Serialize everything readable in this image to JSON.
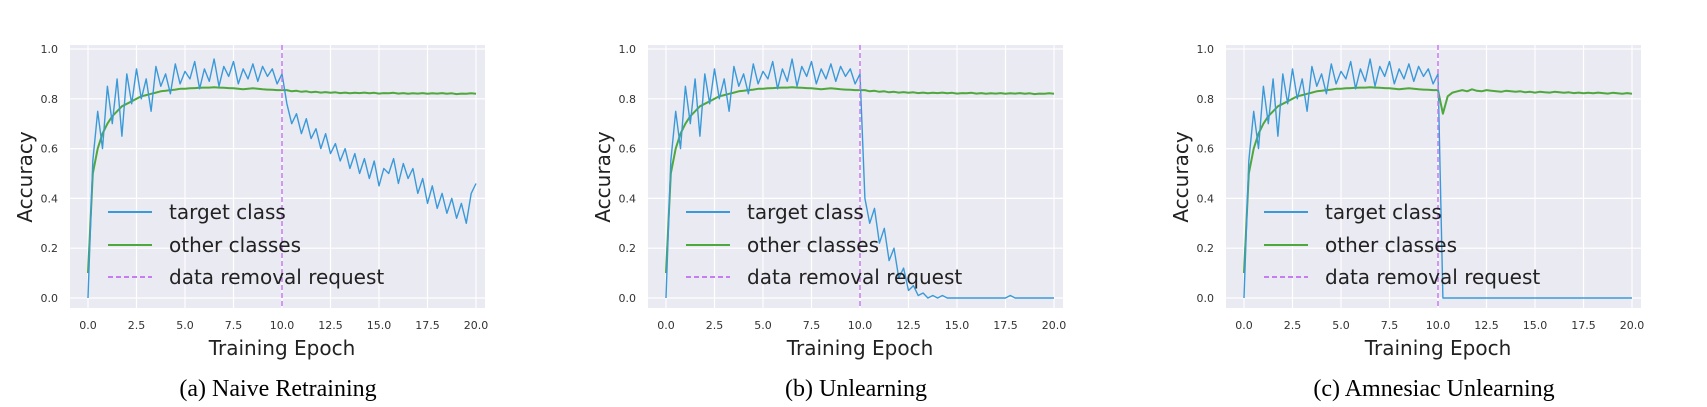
{
  "chart_data": [
    {
      "type": "line",
      "caption": "(a) Naive Retraining",
      "xlabel": "Training Epoch",
      "ylabel": "Accuracy",
      "xlim": [
        0,
        20
      ],
      "ylim": [
        0,
        1
      ],
      "xticks": [
        "0.0",
        "2.5",
        "5.0",
        "7.5",
        "10.0",
        "12.5",
        "15.0",
        "17.5",
        "20.0"
      ],
      "yticks": [
        "0.0",
        "0.2",
        "0.4",
        "0.6",
        "0.8",
        "1.0"
      ],
      "grid": true,
      "legend_position": "lower-left",
      "vline": {
        "x": 10,
        "name": "data removal request",
        "color": "#c77cf0",
        "style": "dashed"
      },
      "series": [
        {
          "name": "target class",
          "color": "#3a9ad9",
          "values": [
            0.0,
            0.55,
            0.75,
            0.6,
            0.85,
            0.7,
            0.88,
            0.65,
            0.9,
            0.78,
            0.92,
            0.8,
            0.88,
            0.75,
            0.93,
            0.85,
            0.9,
            0.82,
            0.94,
            0.86,
            0.91,
            0.88,
            0.95,
            0.84,
            0.92,
            0.87,
            0.96,
            0.85,
            0.93,
            0.89,
            0.95,
            0.86,
            0.92,
            0.88,
            0.94,
            0.87,
            0.93,
            0.89,
            0.92,
            0.86,
            0.9,
            0.78,
            0.7,
            0.74,
            0.66,
            0.72,
            0.64,
            0.68,
            0.6,
            0.66,
            0.58,
            0.62,
            0.55,
            0.6,
            0.52,
            0.58,
            0.5,
            0.56,
            0.48,
            0.55,
            0.45,
            0.52,
            0.5,
            0.56,
            0.46,
            0.54,
            0.48,
            0.52,
            0.42,
            0.48,
            0.38,
            0.45,
            0.36,
            0.42,
            0.34,
            0.4,
            0.32,
            0.38,
            0.3,
            0.42,
            0.46
          ]
        },
        {
          "name": "other classes",
          "color": "#4fa83d",
          "values": [
            0.1,
            0.5,
            0.6,
            0.66,
            0.7,
            0.73,
            0.75,
            0.77,
            0.78,
            0.79,
            0.8,
            0.81,
            0.815,
            0.82,
            0.825,
            0.83,
            0.832,
            0.835,
            0.837,
            0.84,
            0.84,
            0.842,
            0.843,
            0.844,
            0.845,
            0.845,
            0.846,
            0.845,
            0.844,
            0.843,
            0.842,
            0.84,
            0.838,
            0.84,
            0.842,
            0.84,
            0.838,
            0.837,
            0.836,
            0.835,
            0.835,
            0.835,
            0.83,
            0.832,
            0.828,
            0.83,
            0.826,
            0.828,
            0.825,
            0.827,
            0.824,
            0.826,
            0.823,
            0.825,
            0.822,
            0.824,
            0.823,
            0.825,
            0.822,
            0.824,
            0.821,
            0.823,
            0.822,
            0.824,
            0.821,
            0.823,
            0.82,
            0.822,
            0.821,
            0.823,
            0.82,
            0.822,
            0.821,
            0.823,
            0.82,
            0.822,
            0.819,
            0.821,
            0.82,
            0.822,
            0.82
          ]
        }
      ]
    },
    {
      "type": "line",
      "caption": "(b) Unlearning",
      "xlabel": "Training Epoch",
      "ylabel": "Accuracy",
      "xlim": [
        0,
        20
      ],
      "ylim": [
        0,
        1
      ],
      "xticks": [
        "0.0",
        "2.5",
        "5.0",
        "7.5",
        "10.0",
        "12.5",
        "15.0",
        "17.5",
        "20.0"
      ],
      "yticks": [
        "0.0",
        "0.2",
        "0.4",
        "0.6",
        "0.8",
        "1.0"
      ],
      "grid": true,
      "legend_position": "lower-left",
      "vline": {
        "x": 10,
        "name": "data removal request",
        "color": "#c77cf0",
        "style": "dashed"
      },
      "series": [
        {
          "name": "target class",
          "color": "#3a9ad9",
          "values": [
            0.0,
            0.55,
            0.75,
            0.6,
            0.85,
            0.7,
            0.88,
            0.65,
            0.9,
            0.78,
            0.92,
            0.8,
            0.88,
            0.75,
            0.93,
            0.85,
            0.9,
            0.82,
            0.94,
            0.86,
            0.91,
            0.88,
            0.95,
            0.84,
            0.92,
            0.87,
            0.96,
            0.85,
            0.93,
            0.89,
            0.95,
            0.86,
            0.92,
            0.88,
            0.94,
            0.87,
            0.93,
            0.89,
            0.92,
            0.86,
            0.9,
            0.4,
            0.3,
            0.36,
            0.22,
            0.28,
            0.15,
            0.2,
            0.08,
            0.12,
            0.03,
            0.05,
            0.01,
            0.02,
            0,
            0.01,
            0,
            0.01,
            0,
            0,
            0,
            0,
            0,
            0,
            0,
            0,
            0,
            0,
            0,
            0,
            0,
            0.01,
            0,
            0,
            0,
            0,
            0,
            0,
            0,
            0,
            0
          ]
        },
        {
          "name": "other classes",
          "color": "#4fa83d",
          "values": [
            0.1,
            0.5,
            0.6,
            0.66,
            0.7,
            0.73,
            0.75,
            0.77,
            0.78,
            0.79,
            0.8,
            0.81,
            0.815,
            0.82,
            0.825,
            0.83,
            0.832,
            0.835,
            0.837,
            0.84,
            0.84,
            0.842,
            0.843,
            0.844,
            0.845,
            0.845,
            0.846,
            0.845,
            0.844,
            0.843,
            0.842,
            0.84,
            0.838,
            0.84,
            0.842,
            0.84,
            0.838,
            0.837,
            0.836,
            0.835,
            0.835,
            0.835,
            0.83,
            0.832,
            0.828,
            0.83,
            0.826,
            0.828,
            0.825,
            0.827,
            0.824,
            0.826,
            0.823,
            0.825,
            0.822,
            0.824,
            0.823,
            0.825,
            0.822,
            0.824,
            0.821,
            0.823,
            0.822,
            0.824,
            0.821,
            0.823,
            0.82,
            0.822,
            0.821,
            0.823,
            0.82,
            0.822,
            0.821,
            0.823,
            0.82,
            0.822,
            0.819,
            0.821,
            0.82,
            0.822,
            0.82
          ]
        }
      ]
    },
    {
      "type": "line",
      "caption": "(c) Amnesiac Unlearning",
      "xlabel": "Training Epoch",
      "ylabel": "Accuracy",
      "xlim": [
        0,
        20
      ],
      "ylim": [
        0,
        1
      ],
      "xticks": [
        "0.0",
        "2.5",
        "5.0",
        "7.5",
        "10.0",
        "12.5",
        "15.0",
        "17.5",
        "20.0"
      ],
      "yticks": [
        "0.0",
        "0.2",
        "0.4",
        "0.6",
        "0.8",
        "1.0"
      ],
      "grid": true,
      "legend_position": "lower-left",
      "vline": {
        "x": 10,
        "name": "data removal request",
        "color": "#c77cf0",
        "style": "dashed"
      },
      "series": [
        {
          "name": "target class",
          "color": "#3a9ad9",
          "values": [
            0.0,
            0.55,
            0.75,
            0.6,
            0.85,
            0.7,
            0.88,
            0.65,
            0.9,
            0.78,
            0.92,
            0.8,
            0.88,
            0.75,
            0.93,
            0.85,
            0.9,
            0.82,
            0.94,
            0.86,
            0.91,
            0.88,
            0.95,
            0.84,
            0.92,
            0.87,
            0.96,
            0.85,
            0.93,
            0.89,
            0.95,
            0.86,
            0.92,
            0.88,
            0.94,
            0.87,
            0.93,
            0.89,
            0.92,
            0.86,
            0.9,
            0,
            0,
            0,
            0,
            0,
            0,
            0,
            0,
            0,
            0,
            0,
            0,
            0,
            0,
            0,
            0,
            0,
            0,
            0,
            0,
            0,
            0,
            0,
            0,
            0,
            0,
            0,
            0,
            0,
            0,
            0,
            0,
            0,
            0,
            0,
            0,
            0,
            0,
            0,
            0
          ]
        },
        {
          "name": "other classes",
          "color": "#4fa83d",
          "values": [
            0.1,
            0.5,
            0.6,
            0.66,
            0.7,
            0.73,
            0.75,
            0.77,
            0.78,
            0.79,
            0.8,
            0.81,
            0.815,
            0.82,
            0.825,
            0.83,
            0.832,
            0.835,
            0.837,
            0.84,
            0.84,
            0.842,
            0.843,
            0.844,
            0.845,
            0.845,
            0.846,
            0.845,
            0.844,
            0.843,
            0.842,
            0.84,
            0.838,
            0.84,
            0.842,
            0.84,
            0.838,
            0.837,
            0.836,
            0.835,
            0.835,
            0.74,
            0.81,
            0.825,
            0.83,
            0.835,
            0.83,
            0.838,
            0.832,
            0.83,
            0.835,
            0.832,
            0.83,
            0.828,
            0.832,
            0.83,
            0.828,
            0.83,
            0.826,
            0.828,
            0.825,
            0.828,
            0.826,
            0.825,
            0.828,
            0.826,
            0.824,
            0.826,
            0.823,
            0.825,
            0.822,
            0.824,
            0.822,
            0.825,
            0.823,
            0.821,
            0.824,
            0.822,
            0.82,
            0.823,
            0.82
          ]
        }
      ]
    }
  ]
}
